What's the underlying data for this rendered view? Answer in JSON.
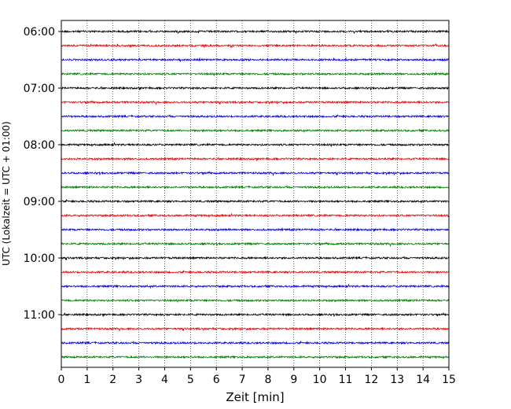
{
  "chart_data": {
    "type": "line",
    "title": "",
    "xlabel": "Zeit  [min]",
    "ylabel": "UTC (Lokalzeit = UTC + 01:00)",
    "xlim": [
      0,
      15
    ],
    "x_ticks": [
      "0",
      "1",
      "2",
      "3",
      "4",
      "5",
      "6",
      "7",
      "8",
      "9",
      "10",
      "11",
      "12",
      "13",
      "14",
      "15"
    ],
    "y_ticks": [
      "06:00",
      "07:00",
      "08:00",
      "09:00",
      "10:00",
      "11:00"
    ],
    "grid": "vertical dotted",
    "trace_start": "06:00",
    "trace_interval_minutes": 15,
    "trace_count": 24,
    "trace_colors": [
      "#000000",
      "#ff0000",
      "#0000ff",
      "#008000"
    ],
    "series": []
  }
}
